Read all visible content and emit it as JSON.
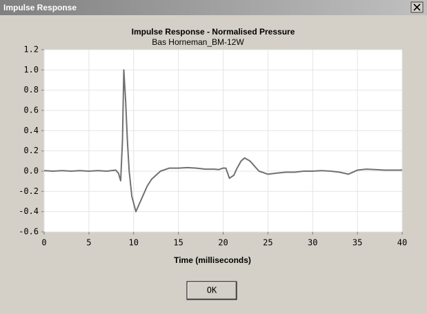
{
  "window": {
    "title": "Impulse Response"
  },
  "chart_data": {
    "type": "line",
    "title": "Impulse Response - Normalised Pressure",
    "subtitle": "Bas Horneman_BM-12W",
    "x_label": "Time (milliseconds)",
    "x": [
      0,
      1,
      2,
      3,
      4,
      5,
      6,
      7,
      8,
      8.3,
      8.55,
      8.75,
      8.9,
      9.1,
      9.3,
      9.5,
      9.8,
      10.25,
      10.6,
      11,
      11.5,
      12,
      13,
      14,
      15,
      16,
      17,
      18,
      19,
      19.5,
      20,
      20.3,
      20.7,
      21.2,
      21.5,
      22,
      22.4,
      23,
      23.5,
      24,
      25,
      26,
      27,
      28,
      29,
      30,
      31,
      32,
      33,
      34,
      35,
      36,
      37,
      38,
      39,
      40
    ],
    "series": [
      {
        "name": "Normalised Pressure",
        "color": "#707070",
        "values": [
          0.005,
          0.0,
          0.005,
          0.0,
          0.005,
          0.0,
          0.005,
          0.0,
          0.01,
          -0.02,
          -0.095,
          0.3,
          1.0,
          0.7,
          0.3,
          0.0,
          -0.25,
          -0.4,
          -0.33,
          -0.25,
          -0.15,
          -0.08,
          0.0,
          0.03,
          0.03,
          0.035,
          0.03,
          0.02,
          0.02,
          0.015,
          0.03,
          0.03,
          -0.07,
          -0.04,
          0.02,
          0.1,
          0.13,
          0.1,
          0.05,
          0.0,
          -0.03,
          -0.02,
          -0.01,
          -0.01,
          0.0,
          0.0,
          0.005,
          0.0,
          -0.01,
          -0.03,
          0.01,
          0.02,
          0.015,
          0.01,
          0.01,
          0.01
        ]
      }
    ],
    "xlim": [
      0,
      40
    ],
    "xticks": [
      0,
      5,
      10,
      15,
      20,
      25,
      30,
      35,
      40
    ],
    "ylim": [
      -0.6,
      1.2
    ],
    "yticks": [
      {
        "value": 1.2,
        "label": "1.2"
      },
      {
        "value": 1,
        "label": "1.0"
      },
      0.8,
      0.6,
      0.4,
      0.2,
      {
        "value": 0,
        "label": "0.0"
      },
      -0.2,
      -0.4,
      -0.6
    ],
    "grid": true
  },
  "buttons": {
    "ok": "OK"
  }
}
